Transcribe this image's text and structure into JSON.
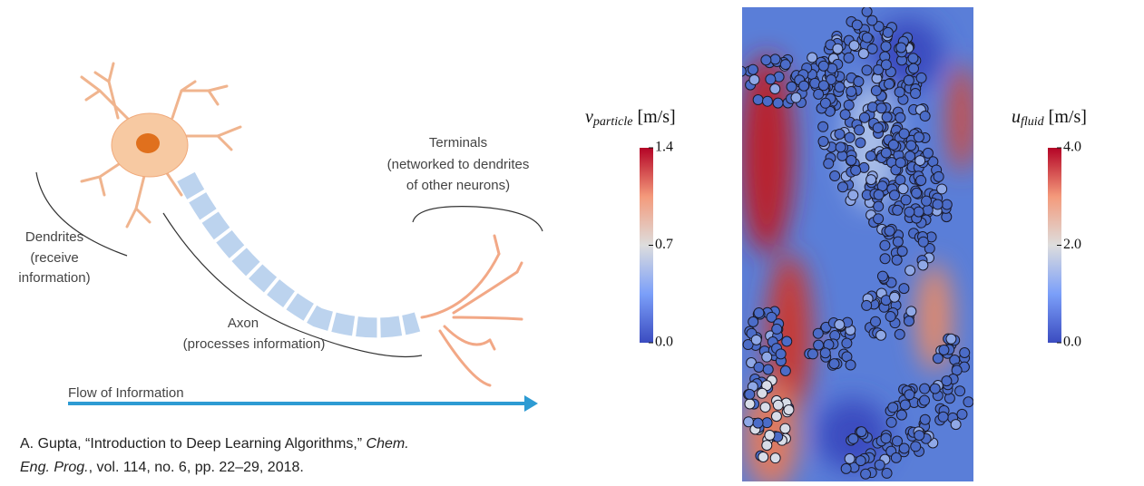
{
  "neuron": {
    "terminals": [
      "Terminals",
      "(networked to dendrites",
      "of other neurons)"
    ],
    "dendrites": [
      "Dendrites",
      "(receive",
      "information)"
    ],
    "axon": [
      "Axon",
      "(processes information)"
    ],
    "flow": "Flow of Information"
  },
  "citation": {
    "before": "A. Gupta, “Introduction to Deep Learning Algorithms,” ",
    "journal_a": "Chem.",
    "journal_b": "Eng. Prog.",
    "after": ", vol. 114, no. 6, pp. 22–29, 2018."
  },
  "colorbars": [
    {
      "symbol": "v",
      "subscript": "particle",
      "unit": "[m/s]",
      "lim": [
        0,
        1.4
      ],
      "ticks": [
        {
          "value": 0,
          "label": "0.0"
        },
        0.7,
        1.4
      ]
    },
    {
      "symbol": "u",
      "subscript": "fluid",
      "unit": "[m/s]",
      "lim": [
        0,
        4
      ],
      "ticks": [
        {
          "value": 0,
          "label": "0.0"
        },
        {
          "value": 2,
          "label": "2.0"
        },
        {
          "value": 4,
          "label": "4.0"
        }
      ]
    }
  ]
}
